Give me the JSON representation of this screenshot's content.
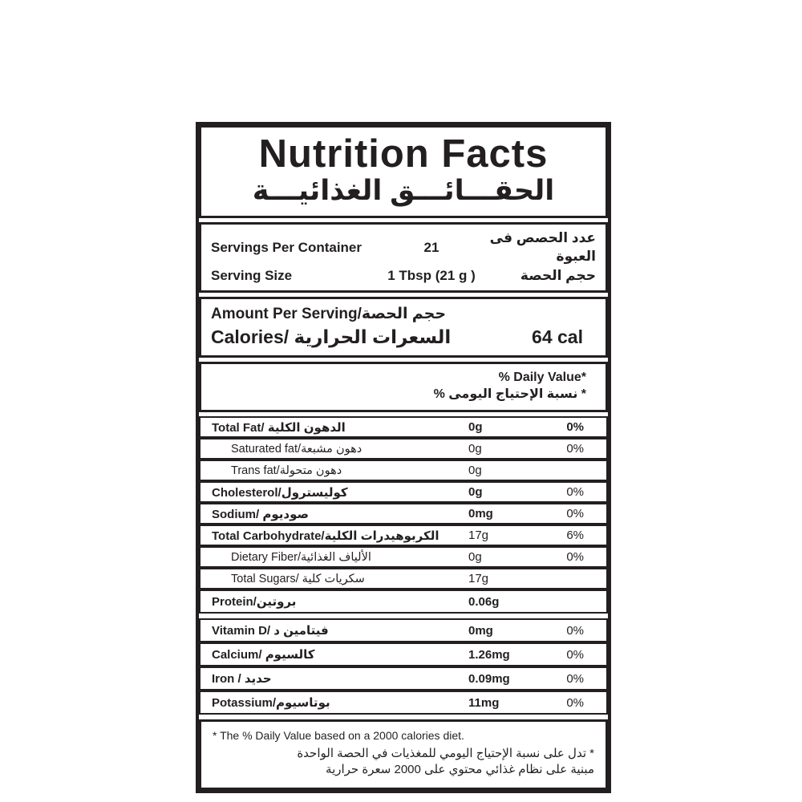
{
  "title_en": "Nutrition Facts",
  "title_ar": "الحقـــائـــق الغذائيـــة",
  "servings": {
    "rows": [
      {
        "en": "Servings Per Container",
        "value": "21",
        "ar": "عدد الحصص فى العبوة"
      },
      {
        "en": "Serving Size",
        "value": "1 Tbsp (21 g )",
        "ar": "حجم الحصة"
      }
    ]
  },
  "amount": {
    "heading": "Amount Per Serving/حجم الحصة",
    "calories_label": "Calories/ السعرات الحرارية",
    "calories_value": "64 cal"
  },
  "daily_value": {
    "en": "% Daily Value*",
    "ar": "* نسبة الإحتياج اليومى %"
  },
  "nutrients": [
    {
      "label": "Total Fat/ الدهون الكلية",
      "amount": "0g",
      "pct": "0%",
      "label_bold": true,
      "amount_bold": true,
      "pct_bold": true,
      "indent": false,
      "group_start": false,
      "tall": false
    },
    {
      "label": "Saturated fat/دهون مشبعة",
      "amount": "0g",
      "pct": "0%",
      "label_bold": false,
      "amount_bold": false,
      "pct_bold": false,
      "indent": true,
      "group_start": false,
      "tall": false
    },
    {
      "label": "Trans fat/دهون متحولة",
      "amount": "0g",
      "pct": "",
      "label_bold": false,
      "amount_bold": false,
      "pct_bold": false,
      "indent": true,
      "group_start": false,
      "tall": false
    },
    {
      "label": "Cholesterol/كوليسترول",
      "amount": "0g",
      "pct": "0%",
      "label_bold": true,
      "amount_bold": true,
      "pct_bold": false,
      "indent": false,
      "group_start": false,
      "tall": false
    },
    {
      "label": "Sodium/ صوديوم",
      "amount": "0mg",
      "pct": "0%",
      "label_bold": true,
      "amount_bold": true,
      "pct_bold": false,
      "indent": false,
      "group_start": false,
      "tall": false
    },
    {
      "label": "Total Carbohydrate/الكربوهيدرات الكلية",
      "amount": "17g",
      "pct": "6%",
      "label_bold": true,
      "amount_bold": false,
      "pct_bold": false,
      "indent": false,
      "group_start": false,
      "tall": false
    },
    {
      "label": "Dietary Fiber/الألياف الغذائية",
      "amount": "0g",
      "pct": "0%",
      "label_bold": false,
      "amount_bold": false,
      "pct_bold": false,
      "indent": true,
      "group_start": false,
      "tall": false
    },
    {
      "label": "Total Sugars/ سكريات كلية",
      "amount": "17g",
      "pct": "",
      "label_bold": false,
      "amount_bold": false,
      "pct_bold": false,
      "indent": true,
      "group_start": false,
      "tall": false
    },
    {
      "label": "Protein/بروتين",
      "amount": "0.06g",
      "pct": "",
      "label_bold": true,
      "amount_bold": true,
      "pct_bold": false,
      "indent": false,
      "group_start": false,
      "tall": true
    },
    {
      "label": "Vitamin D/ فيتامين د",
      "amount": "0mg",
      "pct": "0%",
      "label_bold": true,
      "amount_bold": true,
      "pct_bold": false,
      "indent": false,
      "group_start": true,
      "tall": true
    },
    {
      "label": "Calcium/ كالسيوم",
      "amount": "1.26mg",
      "pct": "0%",
      "label_bold": true,
      "amount_bold": true,
      "pct_bold": false,
      "indent": false,
      "group_start": false,
      "tall": true
    },
    {
      "label": "Iron / حديد",
      "amount": "0.09mg",
      "pct": "0%",
      "label_bold": true,
      "amount_bold": true,
      "pct_bold": false,
      "indent": false,
      "group_start": false,
      "tall": true
    },
    {
      "label": "Potassium/بوتاسيوم",
      "amount": "11mg",
      "pct": "0%",
      "label_bold": true,
      "amount_bold": true,
      "pct_bold": false,
      "indent": false,
      "group_start": false,
      "tall": true
    }
  ],
  "footnote": {
    "en": "* The % Daily Value based on a 2000 calories diet.",
    "ar1": "* تدل على نسبة الإحتياج اليومي للمغذيات في الحصة الواحدة",
    "ar2": "مبنية على نظام غذائي محتوي على 2000 سعرة حرارية"
  }
}
